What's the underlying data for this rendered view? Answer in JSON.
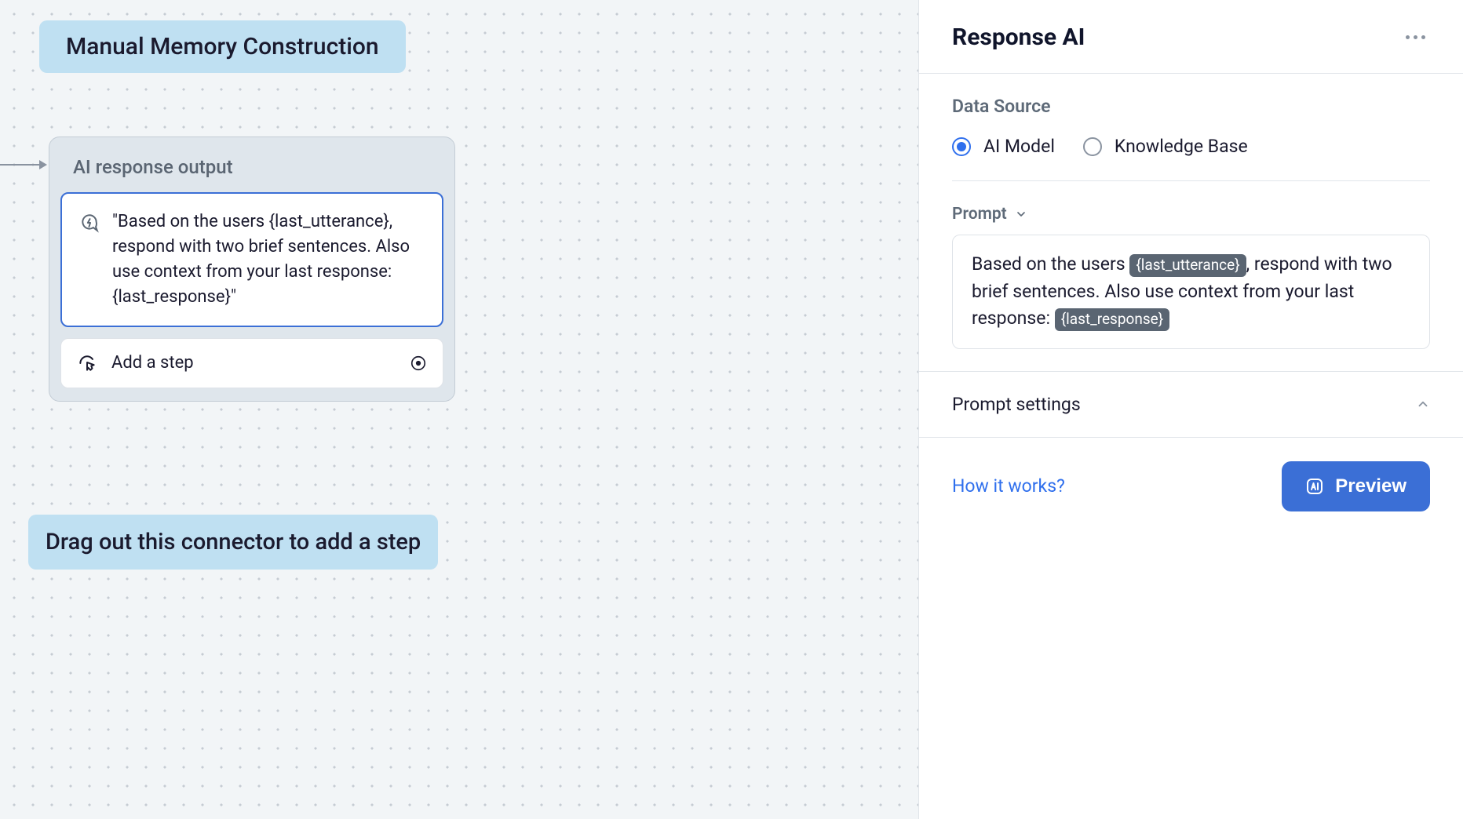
{
  "canvas": {
    "tag_top": "Manual Memory Construction",
    "tag_bottom": "Drag out this connector to add a step",
    "node": {
      "title": "AI response output",
      "body_text": "\"Based on the users {last_utterance}, respond with two brief sentences. Also use context from your last response: {last_response}\"",
      "add_step_label": "Add a step"
    }
  },
  "panel": {
    "title": "Response AI",
    "data_source": {
      "label": "Data Source",
      "options": [
        {
          "label": "AI Model",
          "selected": true
        },
        {
          "label": "Knowledge Base",
          "selected": false
        }
      ]
    },
    "prompt": {
      "label": "Prompt",
      "segments": [
        {
          "type": "text",
          "value": "Based on the users "
        },
        {
          "type": "var",
          "value": "{last_utterance}"
        },
        {
          "type": "text",
          "value": ", respond with two brief sentences. Also use context from your last response: "
        },
        {
          "type": "var",
          "value": "{last_response}"
        }
      ]
    },
    "prompt_settings_label": "Prompt settings",
    "how_it_works": "How it works?",
    "preview_label": "Preview"
  },
  "colors": {
    "canvas_bg": "#f2f5f7",
    "dot": "#c5ccd3",
    "tag_bg": "#bfe0f2",
    "node_bg": "#dfe6ec",
    "node_border": "#c3ccd5",
    "selection_border": "#3b6fd6",
    "primary": "#3b6fd6",
    "link": "#2f6fed",
    "text": "#1a1a2e",
    "muted": "#5e6a78",
    "chip_bg": "#5a6572",
    "divider": "#e1e5ea"
  }
}
